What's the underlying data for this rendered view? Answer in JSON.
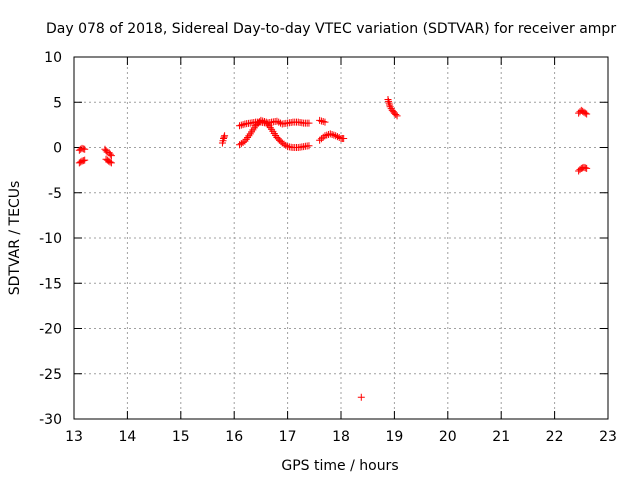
{
  "chart_data": {
    "type": "scatter",
    "title": "Day 078 of 2018, Sidereal Day-to-day VTEC variation (SDTVAR) for receiver ampr",
    "xlabel": "GPS time / hours",
    "ylabel": "SDTVAR / TECUs",
    "xlim": [
      13,
      23
    ],
    "ylim": [
      -30,
      10
    ],
    "xticks": [
      13,
      14,
      15,
      16,
      17,
      18,
      19,
      20,
      21,
      22,
      23
    ],
    "yticks": [
      10,
      5,
      0,
      -5,
      -10,
      -15,
      -20,
      -25,
      -30
    ],
    "grid": true,
    "marker": "+",
    "marker_color": "#ff0000",
    "segments": [
      {
        "x": [
          13.1,
          13.15,
          13.2
        ],
        "y": [
          -0.3,
          -0.1,
          -0.2
        ]
      },
      {
        "x": [
          13.1,
          13.15,
          13.2
        ],
        "y": [
          -1.7,
          -1.5,
          -1.4
        ]
      },
      {
        "x": [
          13.58,
          13.62,
          13.66,
          13.7
        ],
        "y": [
          -0.2,
          -0.5,
          -0.6,
          -0.9
        ]
      },
      {
        "x": [
          13.6,
          13.65,
          13.7
        ],
        "y": [
          -1.3,
          -1.5,
          -1.7
        ]
      },
      {
        "x": [
          15.78,
          15.8,
          15.82
        ],
        "y": [
          0.5,
          1.0,
          1.3
        ]
      },
      {
        "x": [
          16.1,
          16.2,
          16.3,
          16.4,
          16.5,
          16.6,
          16.7,
          16.8,
          16.9,
          17.0,
          17.1,
          17.2,
          17.3,
          17.4
        ],
        "y": [
          2.4,
          2.6,
          2.7,
          2.8,
          2.8,
          2.7,
          2.8,
          2.9,
          2.6,
          2.7,
          2.8,
          2.8,
          2.7,
          2.7
        ]
      },
      {
        "x": [
          16.1,
          16.2,
          16.3,
          16.4,
          16.5,
          16.6,
          16.7,
          16.8,
          16.9,
          17.0,
          17.1,
          17.2,
          17.3,
          17.4
        ],
        "y": [
          0.3,
          0.7,
          1.5,
          2.4,
          3.0,
          2.8,
          2.0,
          1.1,
          0.5,
          0.1,
          0.0,
          0.0,
          0.1,
          0.2
        ]
      },
      {
        "x": [
          17.6,
          17.7
        ],
        "y": [
          3.0,
          2.8
        ]
      },
      {
        "x": [
          17.6,
          17.7,
          17.8,
          17.9,
          18.0,
          18.05
        ],
        "y": [
          0.8,
          1.3,
          1.5,
          1.3,
          1.0,
          1.0
        ]
      },
      {
        "x": [
          18.38
        ],
        "y": [
          -27.6
        ]
      },
      {
        "x": [
          18.88,
          18.92,
          18.96,
          19.0,
          19.05
        ],
        "y": [
          5.3,
          4.5,
          4.1,
          3.8,
          3.5
        ]
      },
      {
        "x": [
          22.45,
          22.5,
          22.55,
          22.6
        ],
        "y": [
          3.8,
          4.1,
          3.9,
          3.7
        ]
      },
      {
        "x": [
          22.45,
          22.5,
          22.55,
          22.6
        ],
        "y": [
          -2.6,
          -2.3,
          -2.2,
          -2.3
        ]
      }
    ]
  }
}
